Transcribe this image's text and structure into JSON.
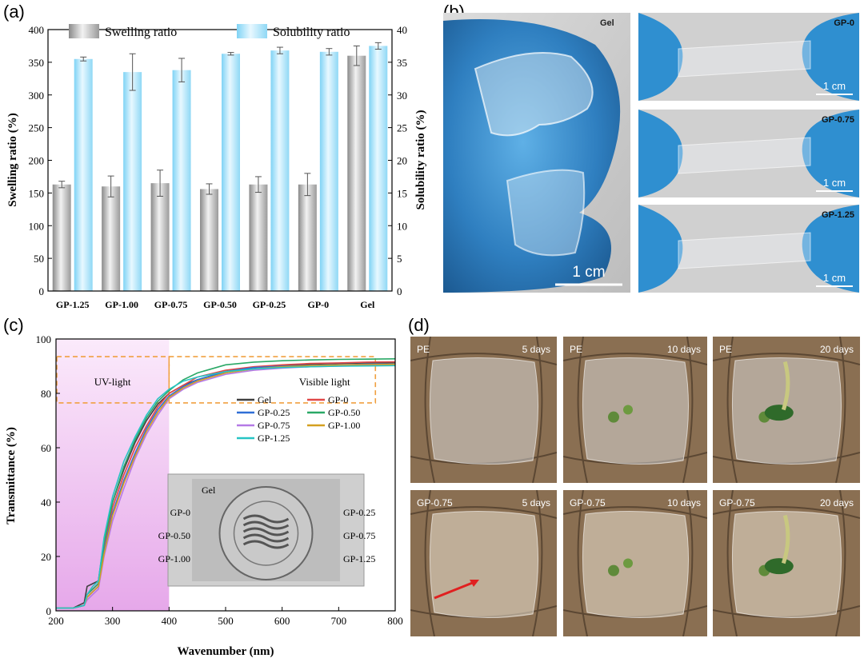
{
  "panels": {
    "a": "(a)",
    "b": "(b)",
    "c": "(c)",
    "d": "(d)"
  },
  "colors": {
    "swelling_bar": "#b8b8b8",
    "solubility_bar": "#aee6fb",
    "gel": "#404040",
    "gp0": "#e04848",
    "gp025": "#2f6fd6",
    "gp050": "#2aa866",
    "gp075": "#b57ae6",
    "gp100": "#d4a020",
    "gp125": "#26c4c4",
    "uv_fill": "#f0c8f0",
    "box_dash": "#f0a040",
    "arrow": "#e02020"
  },
  "chart_data": [
    {
      "type": "bar",
      "panel": "(a)",
      "categories": [
        "GP-1.25",
        "GP-1.00",
        "GP-0.75",
        "GP-0.50",
        "GP-0.25",
        "GP-0",
        "Gel"
      ],
      "series": [
        {
          "name": "Swelling ratio",
          "axis": "left",
          "values": [
            163,
            160,
            165,
            156,
            163,
            163,
            360
          ],
          "errors": [
            5,
            16,
            20,
            8,
            12,
            17,
            15
          ]
        },
        {
          "name": "Solubility ratio",
          "axis": "right",
          "values": [
            35.5,
            33.5,
            33.8,
            36.3,
            36.8,
            36.6,
            37.5
          ],
          "errors": [
            0.3,
            2.8,
            1.8,
            0.2,
            0.5,
            0.5,
            0.5
          ]
        }
      ],
      "ylabel": "Swelling ratio (%)",
      "y2label": "Solubility ratio (%)",
      "ylim": [
        0,
        400
      ],
      "y2lim": [
        0,
        40
      ],
      "yticks": [
        "0",
        "50",
        "100",
        "150",
        "200",
        "250",
        "300",
        "350",
        "400"
      ],
      "y2ticks": [
        "0",
        "5",
        "10",
        "15",
        "20",
        "25",
        "30",
        "35",
        "40"
      ],
      "legend": [
        "Swelling ratio",
        "Solubility ratio"
      ],
      "legend_position": "top"
    },
    {
      "type": "line",
      "panel": "(c)",
      "xlabel": "Wavenumber (nm)",
      "ylabel": "Transmittance (%)",
      "xlim": [
        200,
        800
      ],
      "ylim": [
        0,
        100
      ],
      "xticks": [
        "200",
        "300",
        "400",
        "500",
        "600",
        "700",
        "800"
      ],
      "yticks": [
        "0",
        "20",
        "40",
        "60",
        "80",
        "100"
      ],
      "x": [
        200,
        230,
        250,
        255,
        265,
        275,
        285,
        300,
        320,
        340,
        360,
        380,
        400,
        425,
        450,
        500,
        550,
        600,
        650,
        700,
        750,
        800
      ],
      "series": [
        {
          "name": "Gel",
          "values": [
            1,
            1,
            3,
            9,
            10,
            11,
            26,
            40,
            52,
            62,
            70,
            76,
            80,
            83,
            85,
            88,
            89.5,
            90.3,
            90.7,
            91,
            91.2,
            91.3
          ]
        },
        {
          "name": "GP-0",
          "values": [
            1,
            1,
            2,
            6,
            8,
            10,
            24,
            38,
            50,
            60,
            68,
            75,
            80,
            83,
            86,
            88.5,
            89.8,
            90.5,
            91,
            91.2,
            91.5,
            91.6
          ]
        },
        {
          "name": "GP-0.25",
          "values": [
            1,
            1,
            2,
            5,
            7,
            9,
            22,
            36,
            48,
            58,
            67,
            74,
            79,
            82.5,
            85,
            88,
            89.5,
            90,
            90.3,
            90.5,
            90.7,
            90.8
          ]
        },
        {
          "name": "GP-0.50",
          "values": [
            1,
            1,
            2,
            6,
            8,
            10,
            25,
            40,
            53,
            63,
            71,
            77,
            81,
            85,
            87.5,
            90.5,
            91.5,
            92,
            92.3,
            92.5,
            92.6,
            92.7
          ]
        },
        {
          "name": "GP-0.75",
          "values": [
            1,
            1,
            2,
            4,
            6,
            8,
            20,
            33,
            45,
            56,
            65,
            72,
            78,
            81.5,
            84,
            87,
            88.5,
            89.3,
            89.8,
            90,
            90.2,
            90.3
          ]
        },
        {
          "name": "GP-1.00",
          "values": [
            1,
            1,
            2,
            5,
            7,
            9,
            21,
            35,
            47,
            57,
            66,
            73,
            78.5,
            82,
            84.5,
            87.5,
            89,
            89.8,
            90.2,
            90.4,
            90.6,
            90.7
          ]
        },
        {
          "name": "GP-1.25",
          "values": [
            1,
            1,
            2,
            6,
            9,
            11,
            27,
            42,
            55,
            64,
            72,
            78,
            81.5,
            84.5,
            86,
            88,
            89,
            89.5,
            89.8,
            90,
            90.1,
            90.2
          ]
        }
      ],
      "annotations": {
        "uv": "UV-light",
        "visible": "Visible light"
      },
      "legend_position": "center-right"
    }
  ],
  "inset": {
    "logo_title": "Gel",
    "labels_left": [
      "GP-0",
      "GP-0.50",
      "GP-1.00"
    ],
    "labels_right": [
      "GP-0.25",
      "GP-0.75",
      "GP-1.25"
    ]
  },
  "photos_b": {
    "main_label": "Gel",
    "main_scale": "1 cm",
    "strips": [
      {
        "label": "GP-0",
        "scale": "1 cm"
      },
      {
        "label": "GP-0.75",
        "scale": "1 cm"
      },
      {
        "label": "GP-1.25",
        "scale": "1 cm"
      }
    ]
  },
  "photos_d": {
    "row1": [
      {
        "film": "PE",
        "time": "5 days"
      },
      {
        "film": "PE",
        "time": "10 days"
      },
      {
        "film": "PE",
        "time": "20 days"
      }
    ],
    "row2": [
      {
        "film": "GP-0.75",
        "time": "5 days"
      },
      {
        "film": "GP-0.75",
        "time": "10 days"
      },
      {
        "film": "GP-0.75",
        "time": "20 days"
      }
    ]
  }
}
